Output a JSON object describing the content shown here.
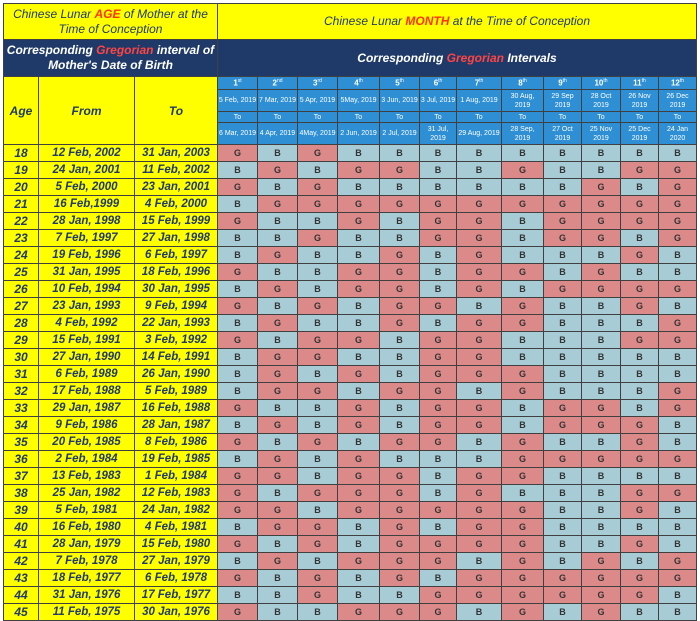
{
  "header": {
    "age_title_pre": "Chinese Lunar ",
    "age_title_hl": "AGE",
    "age_title_post": " of Mother at the Time of Conception",
    "month_title_pre": "Chinese Lunar ",
    "month_title_hl": "MONTH",
    "month_title_post": " at the Time of Conception",
    "greg_title_pre": "Corresponding ",
    "greg_title_hl": "Gregorian",
    "greg_title_post": " interval of Mother's Date of Birth",
    "intervals_pre": "Corresponding ",
    "intervals_hl": "Gregorian",
    "intervals_post": " Intervals",
    "col_age": "Age",
    "col_from": "From",
    "col_to": "To",
    "to_word": "To"
  },
  "months": [
    {
      "num": "1",
      "sup": "st",
      "start": "5 Feb, 2019",
      "end": "6 Mar, 2019"
    },
    {
      "num": "2",
      "sup": "nd",
      "start": "7 Mar, 2019",
      "end": "4 Apr, 2019"
    },
    {
      "num": "3",
      "sup": "rd",
      "start": "5 Apr, 2019",
      "end": "4May, 2019"
    },
    {
      "num": "4",
      "sup": "th",
      "start": "5May, 2019",
      "end": "2 Jun, 2019"
    },
    {
      "num": "5",
      "sup": "th",
      "start": "3 Jun, 2019",
      "end": "2 Jul, 2019"
    },
    {
      "num": "6",
      "sup": "th",
      "start": "3 Jul, 2019",
      "end": "31 Jul, 2019"
    },
    {
      "num": "7",
      "sup": "th",
      "start": "1 Aug, 2019",
      "end": "29 Aug, 2019"
    },
    {
      "num": "8",
      "sup": "th",
      "start": "30 Aug, 2019",
      "end": "28 Sep, 2019"
    },
    {
      "num": "9",
      "sup": "th",
      "start": "29 Sep 2019",
      "end": "27 Oct 2019"
    },
    {
      "num": "10",
      "sup": "th",
      "start": "28 Oct 2019",
      "end": "25 Nov 2019"
    },
    {
      "num": "11",
      "sup": "th",
      "start": "26 Nov 2019",
      "end": "25 Dec 2019"
    },
    {
      "num": "12",
      "sup": "th",
      "start": "26 Dec 2019",
      "end": "24 Jan 2020"
    }
  ],
  "rows": [
    {
      "age": "18",
      "from": "12 Feb, 2002",
      "to": "31 Jan, 2003",
      "cells": [
        "G",
        "B",
        "G",
        "B",
        "B",
        "B",
        "B",
        "B",
        "B",
        "B",
        "B",
        "B"
      ]
    },
    {
      "age": "19",
      "from": "24 Jan, 2001",
      "to": "11 Feb, 2002",
      "cells": [
        "B",
        "G",
        "B",
        "G",
        "G",
        "B",
        "B",
        "G",
        "B",
        "B",
        "G",
        "G"
      ]
    },
    {
      "age": "20",
      "from": "5 Feb, 2000",
      "to": "23 Jan, 2001",
      "cells": [
        "G",
        "B",
        "G",
        "B",
        "B",
        "B",
        "B",
        "B",
        "B",
        "G",
        "B",
        "G"
      ]
    },
    {
      "age": "21",
      "from": "16 Feb,1999",
      "to": "4 Feb, 2000",
      "cells": [
        "B",
        "G",
        "G",
        "G",
        "G",
        "G",
        "G",
        "G",
        "G",
        "G",
        "G",
        "G"
      ]
    },
    {
      "age": "22",
      "from": "28 Jan, 1998",
      "to": "15 Feb, 1999",
      "cells": [
        "G",
        "B",
        "B",
        "G",
        "B",
        "G",
        "G",
        "B",
        "G",
        "G",
        "G",
        "G"
      ]
    },
    {
      "age": "23",
      "from": "7 Feb, 1997",
      "to": "27 Jan, 1998",
      "cells": [
        "B",
        "B",
        "G",
        "B",
        "B",
        "G",
        "G",
        "B",
        "G",
        "G",
        "B",
        "G"
      ]
    },
    {
      "age": "24",
      "from": "19 Feb, 1996",
      "to": "6 Feb, 1997",
      "cells": [
        "B",
        "G",
        "B",
        "B",
        "G",
        "B",
        "G",
        "B",
        "B",
        "B",
        "G",
        "B"
      ]
    },
    {
      "age": "25",
      "from": "31 Jan, 1995",
      "to": "18 Feb, 1996",
      "cells": [
        "G",
        "B",
        "B",
        "G",
        "G",
        "B",
        "G",
        "G",
        "B",
        "G",
        "B",
        "B"
      ]
    },
    {
      "age": "26",
      "from": "10 Feb, 1994",
      "to": "30 Jan, 1995",
      "cells": [
        "B",
        "G",
        "B",
        "G",
        "G",
        "B",
        "G",
        "B",
        "G",
        "G",
        "G",
        "G"
      ]
    },
    {
      "age": "27",
      "from": "23 Jan, 1993",
      "to": "9 Feb, 1994",
      "cells": [
        "G",
        "B",
        "G",
        "B",
        "G",
        "G",
        "B",
        "G",
        "B",
        "B",
        "G",
        "B"
      ]
    },
    {
      "age": "28",
      "from": "4 Feb, 1992",
      "to": "22 Jan, 1993",
      "cells": [
        "B",
        "G",
        "B",
        "B",
        "G",
        "B",
        "G",
        "G",
        "B",
        "B",
        "B",
        "G"
      ]
    },
    {
      "age": "29",
      "from": "15 Feb, 1991",
      "to": "3 Feb, 1992",
      "cells": [
        "G",
        "B",
        "G",
        "G",
        "B",
        "G",
        "G",
        "B",
        "B",
        "B",
        "G",
        "G"
      ]
    },
    {
      "age": "30",
      "from": "27 Jan, 1990",
      "to": "14 Feb, 1991",
      "cells": [
        "B",
        "G",
        "G",
        "B",
        "B",
        "G",
        "G",
        "B",
        "B",
        "B",
        "B",
        "B"
      ]
    },
    {
      "age": "31",
      "from": "6 Feb, 1989",
      "to": "26 Jan, 1990",
      "cells": [
        "B",
        "G",
        "B",
        "G",
        "B",
        "G",
        "G",
        "G",
        "B",
        "B",
        "B",
        "B"
      ]
    },
    {
      "age": "32",
      "from": "17 Feb, 1988",
      "to": "5 Feb, 1989",
      "cells": [
        "B",
        "G",
        "G",
        "B",
        "G",
        "G",
        "B",
        "G",
        "B",
        "B",
        "B",
        "G"
      ]
    },
    {
      "age": "33",
      "from": "29 Jan, 1987",
      "to": "16 Feb, 1988",
      "cells": [
        "G",
        "B",
        "B",
        "G",
        "B",
        "G",
        "G",
        "B",
        "G",
        "G",
        "B",
        "G"
      ]
    },
    {
      "age": "34",
      "from": "9 Feb, 1986",
      "to": "28 Jan, 1987",
      "cells": [
        "B",
        "G",
        "B",
        "G",
        "B",
        "G",
        "G",
        "B",
        "G",
        "G",
        "G",
        "B"
      ]
    },
    {
      "age": "35",
      "from": "20 Feb, 1985",
      "to": "8 Feb, 1986",
      "cells": [
        "G",
        "B",
        "G",
        "B",
        "G",
        "G",
        "B",
        "G",
        "B",
        "B",
        "G",
        "B"
      ]
    },
    {
      "age": "36",
      "from": "2 Feb, 1984",
      "to": "19 Feb, 1985",
      "cells": [
        "B",
        "G",
        "B",
        "G",
        "B",
        "B",
        "B",
        "G",
        "G",
        "G",
        "G",
        "G"
      ]
    },
    {
      "age": "37",
      "from": "13 Feb, 1983",
      "to": "1 Feb, 1984",
      "cells": [
        "G",
        "G",
        "B",
        "G",
        "G",
        "B",
        "G",
        "G",
        "B",
        "B",
        "B",
        "B"
      ]
    },
    {
      "age": "38",
      "from": "25 Jan, 1982",
      "to": "12 Feb, 1983",
      "cells": [
        "G",
        "B",
        "G",
        "G",
        "G",
        "B",
        "G",
        "B",
        "B",
        "B",
        "G",
        "G"
      ]
    },
    {
      "age": "39",
      "from": "5 Feb, 1981",
      "to": "24 Jan, 1982",
      "cells": [
        "G",
        "G",
        "B",
        "G",
        "G",
        "G",
        "G",
        "G",
        "B",
        "B",
        "G",
        "B"
      ]
    },
    {
      "age": "40",
      "from": "16 Feb, 1980",
      "to": "4 Feb, 1981",
      "cells": [
        "B",
        "G",
        "G",
        "B",
        "G",
        "B",
        "G",
        "G",
        "B",
        "B",
        "B",
        "B"
      ]
    },
    {
      "age": "41",
      "from": "28 Jan, 1979",
      "to": "15 Feb, 1980",
      "cells": [
        "G",
        "B",
        "G",
        "B",
        "G",
        "G",
        "G",
        "G",
        "B",
        "B",
        "G",
        "B"
      ]
    },
    {
      "age": "42",
      "from": "7 Feb, 1978",
      "to": "27 Jan, 1979",
      "cells": [
        "B",
        "G",
        "B",
        "G",
        "G",
        "G",
        "B",
        "G",
        "B",
        "G",
        "B",
        "G"
      ]
    },
    {
      "age": "43",
      "from": "18 Feb, 1977",
      "to": "6 Feb, 1978",
      "cells": [
        "G",
        "B",
        "G",
        "B",
        "G",
        "B",
        "G",
        "G",
        "G",
        "G",
        "G",
        "G"
      ]
    },
    {
      "age": "44",
      "from": "31 Jan, 1976",
      "to": "17 Feb, 1977",
      "cells": [
        "B",
        "B",
        "G",
        "B",
        "B",
        "G",
        "G",
        "G",
        "G",
        "G",
        "G",
        "B"
      ]
    },
    {
      "age": "45",
      "from": "11 Feb, 1975",
      "to": "30 Jan, 1976",
      "cells": [
        "G",
        "B",
        "B",
        "G",
        "G",
        "G",
        "B",
        "G",
        "B",
        "G",
        "B",
        "B"
      ]
    }
  ],
  "colors": {
    "B": "#a7ccd6",
    "G": "#dc8a89",
    "header_navy": "#1f3a68",
    "header_yellow": "#ffff00",
    "month_blue": "#2e8fd4"
  }
}
